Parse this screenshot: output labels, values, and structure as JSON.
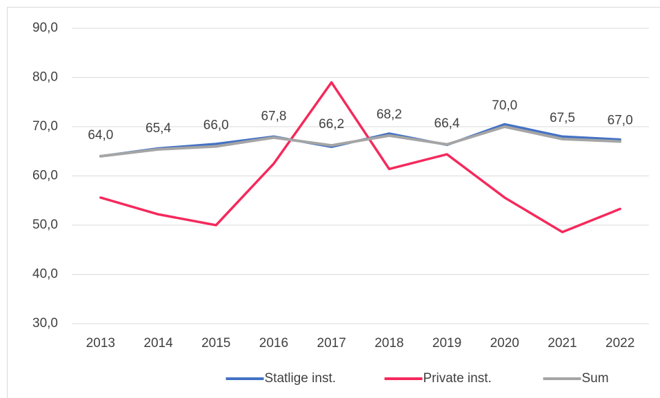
{
  "chart_data": {
    "type": "line",
    "categories": [
      "2013",
      "2014",
      "2015",
      "2016",
      "2017",
      "2018",
      "2019",
      "2020",
      "2021",
      "2022"
    ],
    "series": [
      {
        "name": "Statlige inst.",
        "color": "#4472c4",
        "values": [
          64.0,
          65.6,
          66.5,
          68.0,
          65.9,
          68.6,
          66.3,
          70.5,
          68.0,
          67.4
        ]
      },
      {
        "name": "Private inst.",
        "color": "#f5295c",
        "values": [
          55.6,
          52.2,
          50.0,
          62.5,
          79.0,
          61.4,
          64.4,
          55.6,
          48.6,
          53.3
        ]
      },
      {
        "name": "Sum",
        "color": "#a5a5a5",
        "values": [
          64.0,
          65.4,
          66.0,
          67.8,
          66.2,
          68.2,
          66.4,
          70.0,
          67.5,
          67.0
        ],
        "value_labels": [
          "64,0",
          "65,4",
          "66,0",
          "67,8",
          "66,2",
          "68,2",
          "66,4",
          "70,0",
          "67,5",
          "67,0"
        ]
      }
    ],
    "ylim": [
      30,
      90
    ],
    "yticks": [
      {
        "value": 30,
        "label": "30,0"
      },
      {
        "value": 40,
        "label": "40,0"
      },
      {
        "value": 50,
        "label": "50,0"
      },
      {
        "value": 60,
        "label": "60,0"
      },
      {
        "value": 70,
        "label": "70,0"
      },
      {
        "value": 80,
        "label": "80,0"
      },
      {
        "value": 90,
        "label": "90,0"
      }
    ],
    "grid": true,
    "legend": "bottom"
  }
}
